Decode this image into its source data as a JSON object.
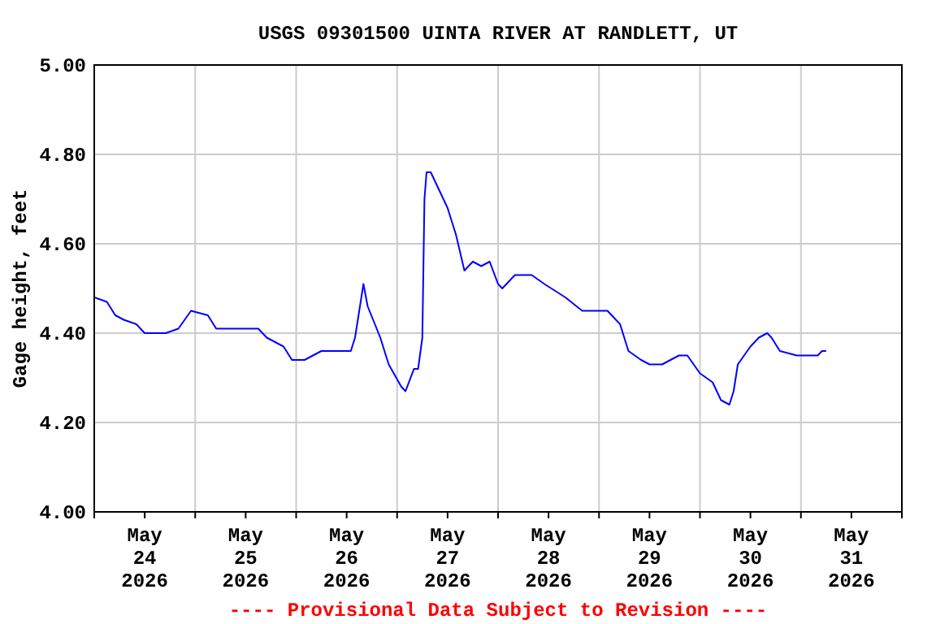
{
  "chart_data": {
    "type": "line",
    "title": "USGS 09301500 UINTA RIVER AT RANDLETT, UT",
    "ylabel": "Gage height, feet",
    "annotations": [
      "---- Provisional Data Subject to Revision ----"
    ],
    "xlim": [
      "2026-05-24T00:00",
      "2026-06-01T00:00"
    ],
    "xticks": [
      {
        "value": "2026-05-24T00:00",
        "label": null
      },
      {
        "value": "2026-05-24T12:00",
        "label": "May\n24\n2026"
      },
      {
        "value": "2026-05-25T00:00",
        "label": null
      },
      {
        "value": "2026-05-25T12:00",
        "label": "May\n25\n2026"
      },
      {
        "value": "2026-05-26T00:00",
        "label": null
      },
      {
        "value": "2026-05-26T12:00",
        "label": "May\n26\n2026"
      },
      {
        "value": "2026-05-27T00:00",
        "label": null
      },
      {
        "value": "2026-05-27T12:00",
        "label": "May\n27\n2026"
      },
      {
        "value": "2026-05-28T00:00",
        "label": null
      },
      {
        "value": "2026-05-28T12:00",
        "label": "May\n28\n2026"
      },
      {
        "value": "2026-05-29T00:00",
        "label": null
      },
      {
        "value": "2026-05-29T12:00",
        "label": "May\n29\n2026"
      },
      {
        "value": "2026-05-30T00:00",
        "label": null
      },
      {
        "value": "2026-05-30T12:00",
        "label": "May\n30\n2026"
      },
      {
        "value": "2026-05-31T00:00",
        "label": null
      },
      {
        "value": "2026-05-31T12:00",
        "label": "May\n31\n2026"
      },
      {
        "value": "2026-06-01T00:00",
        "label": null
      }
    ],
    "ylim": [
      4.0,
      5.0
    ],
    "yticks": [
      {
        "value": 4.0,
        "label": "4.00"
      },
      {
        "value": 4.2,
        "label": "4.20"
      },
      {
        "value": 4.4,
        "label": "4.40"
      },
      {
        "value": 4.6,
        "label": "4.60"
      },
      {
        "value": 4.8,
        "label": "4.80"
      },
      {
        "value": 5.0,
        "label": "5.00"
      }
    ],
    "grid": true,
    "marker": "none",
    "line_style": "solid",
    "series": [
      {
        "color": "#0000ff",
        "x": [
          "2026-05-24T00:00",
          "2026-05-24T03:00",
          "2026-05-24T05:00",
          "2026-05-24T07:00",
          "2026-05-24T10:00",
          "2026-05-24T12:00",
          "2026-05-24T17:00",
          "2026-05-24T20:00",
          "2026-05-24T23:00",
          "2026-05-25T03:00",
          "2026-05-25T05:00",
          "2026-05-25T09:00",
          "2026-05-25T15:00",
          "2026-05-25T17:00",
          "2026-05-25T21:00",
          "2026-05-25T23:00",
          "2026-05-26T02:00",
          "2026-05-26T06:00",
          "2026-05-26T10:00",
          "2026-05-26T13:00",
          "2026-05-26T14:00",
          "2026-05-26T16:00",
          "2026-05-26T17:00",
          "2026-05-26T20:00",
          "2026-05-26T22:00",
          "2026-05-27T01:00",
          "2026-05-27T02:00",
          "2026-05-27T04:00",
          "2026-05-27T05:00",
          "2026-05-27T06:00",
          "2026-05-27T06:30",
          "2026-05-27T07:00",
          "2026-05-27T08:00",
          "2026-05-27T10:00",
          "2026-05-27T12:00",
          "2026-05-27T14:00",
          "2026-05-27T16:00",
          "2026-05-27T18:00",
          "2026-05-27T20:00",
          "2026-05-27T22:00",
          "2026-05-28T00:00",
          "2026-05-28T01:00",
          "2026-05-28T04:00",
          "2026-05-28T08:00",
          "2026-05-28T11:00",
          "2026-05-28T16:00",
          "2026-05-28T20:00",
          "2026-05-29T02:00",
          "2026-05-29T05:00",
          "2026-05-29T07:00",
          "2026-05-29T10:00",
          "2026-05-29T12:00",
          "2026-05-29T15:00",
          "2026-05-29T19:00",
          "2026-05-29T21:00",
          "2026-05-30T00:00",
          "2026-05-30T03:00",
          "2026-05-30T05:00",
          "2026-05-30T07:00",
          "2026-05-30T08:00",
          "2026-05-30T09:00",
          "2026-05-30T12:00",
          "2026-05-30T14:00",
          "2026-05-30T16:00",
          "2026-05-30T17:00",
          "2026-05-30T19:00",
          "2026-05-30T23:00",
          "2026-05-31T04:00",
          "2026-05-31T05:00",
          "2026-05-31T06:00"
        ],
        "values": [
          4.48,
          4.47,
          4.44,
          4.43,
          4.42,
          4.4,
          4.4,
          4.41,
          4.45,
          4.44,
          4.41,
          4.41,
          4.41,
          4.39,
          4.37,
          4.34,
          4.34,
          4.36,
          4.36,
          4.36,
          4.39,
          4.51,
          4.46,
          4.39,
          4.33,
          4.28,
          4.27,
          4.32,
          4.32,
          4.39,
          4.7,
          4.76,
          4.76,
          4.72,
          4.68,
          4.62,
          4.54,
          4.56,
          4.55,
          4.56,
          4.51,
          4.5,
          4.53,
          4.53,
          4.51,
          4.48,
          4.45,
          4.45,
          4.42,
          4.36,
          4.34,
          4.33,
          4.33,
          4.35,
          4.35,
          4.31,
          4.29,
          4.25,
          4.24,
          4.27,
          4.33,
          4.37,
          4.39,
          4.4,
          4.39,
          4.36,
          4.35,
          4.35,
          4.36,
          4.36
        ]
      }
    ]
  }
}
